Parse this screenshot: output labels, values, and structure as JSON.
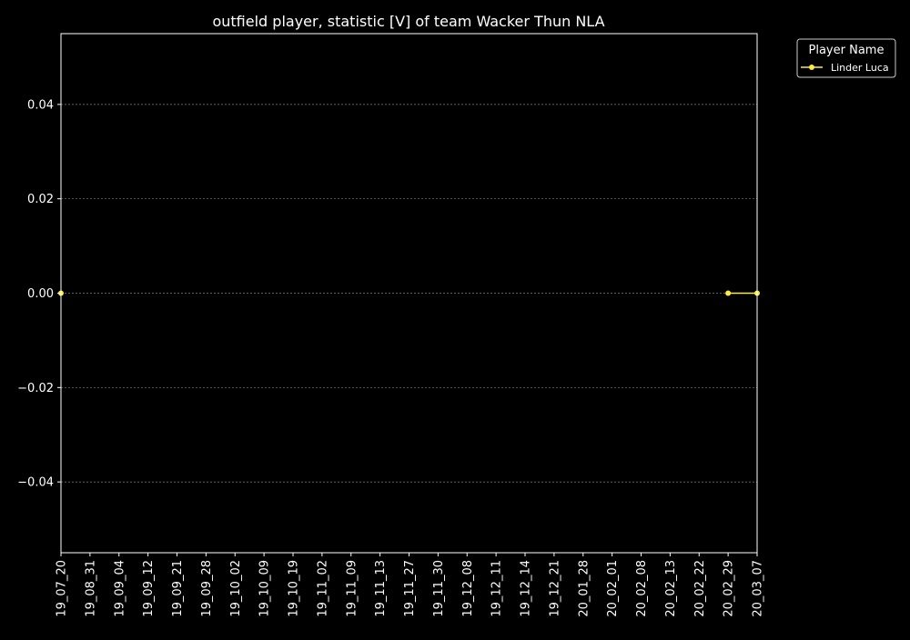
{
  "chart_data": {
    "type": "line",
    "title": "outfield player, statistic [V] of team Wacker Thun NLA",
    "xlabel": "",
    "ylabel": "",
    "categories": [
      "19_07_20",
      "19_08_31",
      "19_09_04",
      "19_09_12",
      "19_09_21",
      "19_09_28",
      "19_10_02",
      "19_10_09",
      "19_10_19",
      "19_11_02",
      "19_11_09",
      "19_11_13",
      "19_11_27",
      "19_11_30",
      "19_12_08",
      "19_12_11",
      "19_12_14",
      "19_12_21",
      "20_01_28",
      "20_02_01",
      "20_02_08",
      "20_02_13",
      "20_02_22",
      "20_02_29",
      "20_03_07"
    ],
    "y_ticks": [
      -0.04,
      -0.02,
      0.0,
      0.02,
      0.04
    ],
    "y_tick_labels": [
      "−0.04",
      "−0.02",
      "0.00",
      "0.02",
      "0.04"
    ],
    "ylim": [
      -0.055,
      0.055
    ],
    "grid": "horizontal dashed",
    "legend": {
      "title": "Player Name",
      "placement": "outside top-right"
    },
    "series": [
      {
        "name": "Linder Luca",
        "color": "#ffeb3b",
        "points": [
          {
            "x": "19_07_20",
            "y": 0
          },
          {
            "x": "20_02_29",
            "y": 0
          },
          {
            "x": "20_03_07",
            "y": 0
          }
        ],
        "line_segments": [
          [
            "20_02_29",
            "20_03_07"
          ]
        ]
      }
    ]
  },
  "colors": {
    "background": "#000000",
    "axes": "#ffffff",
    "grid": "#808080"
  }
}
